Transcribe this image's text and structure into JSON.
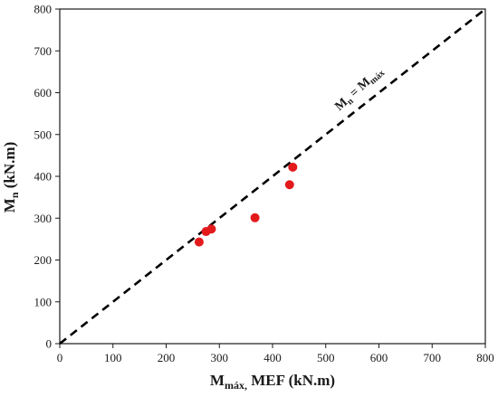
{
  "chart_data": {
    "type": "scatter",
    "x": [
      262,
      275,
      285,
      367,
      432,
      438
    ],
    "y": [
      243,
      268,
      274,
      301,
      380,
      422
    ],
    "xlabel": {
      "main": "M",
      "sub": "máx,",
      "rest": "  MEF (kN.m)"
    },
    "ylabel": {
      "main": "M",
      "sub": "n",
      "rest": "  (kN.m)"
    },
    "xlim": [
      0,
      800
    ],
    "ylim": [
      0,
      800
    ],
    "xticks": [
      "0",
      "100",
      "200",
      "300",
      "400",
      "500",
      "600",
      "700",
      "800"
    ],
    "yticks": [
      "0",
      "100",
      "200",
      "300",
      "400",
      "500",
      "600",
      "700",
      "800"
    ],
    "reference_line": {
      "type": "y=x",
      "style": "dashed",
      "label_parts": {
        "m1": "M",
        "s1": "n",
        "eq": " = M",
        "s2": "máx"
      }
    },
    "grid": false,
    "legend": "none",
    "colors": {
      "points": "#e31a1c",
      "line": "#000000",
      "axes": "#1a1a1a"
    }
  }
}
